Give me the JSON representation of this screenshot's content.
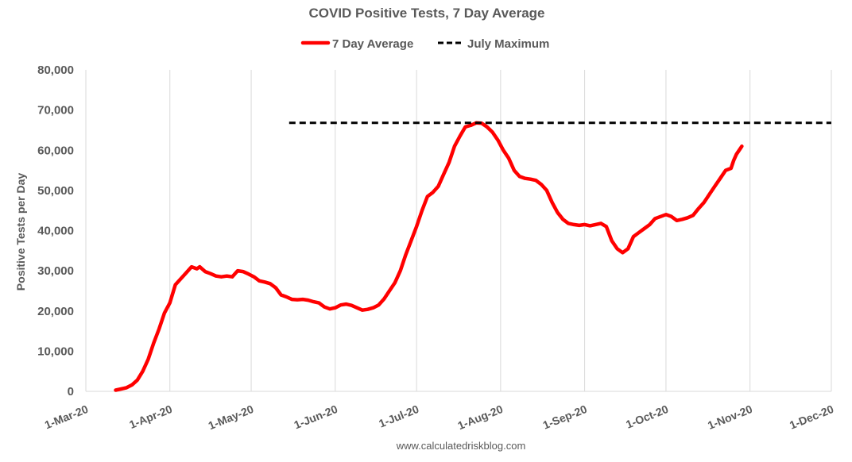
{
  "chart_data": {
    "type": "line",
    "title": "COVID Positive Tests, 7 Day Average",
    "xlabel": "",
    "ylabel": "Positive Tests per Day",
    "ylim": [
      0,
      80000
    ],
    "yticks": [
      0,
      10000,
      20000,
      30000,
      40000,
      50000,
      60000,
      70000,
      80000
    ],
    "ytick_labels": [
      "0",
      "10,000",
      "20,000",
      "30,000",
      "40,000",
      "50,000",
      "60,000",
      "70,000",
      "80,000"
    ],
    "xlim": [
      "2020-03-01",
      "2020-12-01"
    ],
    "xticks": [
      "2020-03-01",
      "2020-04-01",
      "2020-05-01",
      "2020-06-01",
      "2020-07-01",
      "2020-08-01",
      "2020-09-01",
      "2020-10-01",
      "2020-11-01",
      "2020-12-01"
    ],
    "xtick_labels": [
      "1-Mar-20",
      "1-Apr-20",
      "1-May-20",
      "1-Jun-20",
      "1-Jul-20",
      "1-Aug-20",
      "1-Sep-20",
      "1-Oct-20",
      "1-Nov-20",
      "1-Dec-20"
    ],
    "grid": "vertical",
    "legend_placement": "top-center",
    "series": [
      {
        "name": "7 Day Average",
        "color": "#ff0000",
        "style": "solid",
        "points": [
          [
            "2020-03-12",
            300
          ],
          [
            "2020-03-14",
            600
          ],
          [
            "2020-03-16",
            900
          ],
          [
            "2020-03-18",
            1600
          ],
          [
            "2020-03-20",
            2800
          ],
          [
            "2020-03-22",
            5000
          ],
          [
            "2020-03-24",
            8000
          ],
          [
            "2020-03-26",
            12000
          ],
          [
            "2020-03-28",
            15500
          ],
          [
            "2020-03-30",
            19500
          ],
          [
            "2020-04-01",
            22000
          ],
          [
            "2020-04-03",
            26500
          ],
          [
            "2020-04-05",
            28000
          ],
          [
            "2020-04-07",
            29500
          ],
          [
            "2020-04-09",
            31000
          ],
          [
            "2020-04-11",
            30500
          ],
          [
            "2020-04-12",
            31000
          ],
          [
            "2020-04-14",
            29800
          ],
          [
            "2020-04-16",
            29300
          ],
          [
            "2020-04-18",
            28700
          ],
          [
            "2020-04-20",
            28500
          ],
          [
            "2020-04-22",
            28700
          ],
          [
            "2020-04-24",
            28500
          ],
          [
            "2020-04-26",
            30000
          ],
          [
            "2020-04-28",
            29800
          ],
          [
            "2020-04-30",
            29200
          ],
          [
            "2020-05-02",
            28500
          ],
          [
            "2020-05-04",
            27500
          ],
          [
            "2020-05-06",
            27200
          ],
          [
            "2020-05-08",
            26800
          ],
          [
            "2020-05-10",
            25800
          ],
          [
            "2020-05-12",
            24000
          ],
          [
            "2020-05-14",
            23500
          ],
          [
            "2020-05-16",
            22900
          ],
          [
            "2020-05-18",
            22800
          ],
          [
            "2020-05-20",
            22900
          ],
          [
            "2020-05-22",
            22700
          ],
          [
            "2020-05-24",
            22300
          ],
          [
            "2020-05-26",
            22000
          ],
          [
            "2020-05-28",
            21000
          ],
          [
            "2020-05-30",
            20500
          ],
          [
            "2020-06-01",
            20800
          ],
          [
            "2020-06-03",
            21500
          ],
          [
            "2020-06-05",
            21700
          ],
          [
            "2020-06-07",
            21400
          ],
          [
            "2020-06-09",
            20800
          ],
          [
            "2020-06-11",
            20200
          ],
          [
            "2020-06-13",
            20400
          ],
          [
            "2020-06-15",
            20800
          ],
          [
            "2020-06-17",
            21500
          ],
          [
            "2020-06-19",
            23000
          ],
          [
            "2020-06-21",
            25000
          ],
          [
            "2020-06-23",
            27000
          ],
          [
            "2020-06-25",
            30000
          ],
          [
            "2020-06-27",
            34000
          ],
          [
            "2020-06-29",
            37500
          ],
          [
            "2020-07-01",
            41000
          ],
          [
            "2020-07-03",
            45000
          ],
          [
            "2020-07-05",
            48500
          ],
          [
            "2020-07-07",
            49500
          ],
          [
            "2020-07-09",
            51000
          ],
          [
            "2020-07-11",
            54000
          ],
          [
            "2020-07-13",
            57000
          ],
          [
            "2020-07-15",
            61000
          ],
          [
            "2020-07-17",
            63500
          ],
          [
            "2020-07-19",
            65800
          ],
          [
            "2020-07-21",
            66200
          ],
          [
            "2020-07-23",
            66800
          ],
          [
            "2020-07-25",
            66700
          ],
          [
            "2020-07-27",
            65800
          ],
          [
            "2020-07-29",
            64500
          ],
          [
            "2020-07-31",
            62500
          ],
          [
            "2020-08-02",
            60000
          ],
          [
            "2020-08-04",
            58000
          ],
          [
            "2020-08-06",
            55000
          ],
          [
            "2020-08-08",
            53500
          ],
          [
            "2020-08-10",
            53000
          ],
          [
            "2020-08-12",
            52800
          ],
          [
            "2020-08-14",
            52500
          ],
          [
            "2020-08-16",
            51500
          ],
          [
            "2020-08-18",
            50000
          ],
          [
            "2020-08-20",
            47000
          ],
          [
            "2020-08-22",
            44500
          ],
          [
            "2020-08-24",
            42800
          ],
          [
            "2020-08-26",
            41800
          ],
          [
            "2020-08-28",
            41500
          ],
          [
            "2020-08-30",
            41300
          ],
          [
            "2020-09-01",
            41500
          ],
          [
            "2020-09-03",
            41200
          ],
          [
            "2020-09-05",
            41500
          ],
          [
            "2020-09-07",
            41800
          ],
          [
            "2020-09-09",
            41000
          ],
          [
            "2020-09-11",
            37500
          ],
          [
            "2020-09-13",
            35500
          ],
          [
            "2020-09-15",
            34500
          ],
          [
            "2020-09-17",
            35500
          ],
          [
            "2020-09-19",
            38500
          ],
          [
            "2020-09-21",
            39500
          ],
          [
            "2020-09-23",
            40500
          ],
          [
            "2020-09-25",
            41500
          ],
          [
            "2020-09-27",
            43000
          ],
          [
            "2020-09-29",
            43500
          ],
          [
            "2020-10-01",
            44000
          ],
          [
            "2020-10-03",
            43500
          ],
          [
            "2020-10-05",
            42500
          ],
          [
            "2020-10-07",
            42800
          ],
          [
            "2020-10-09",
            43200
          ],
          [
            "2020-10-11",
            43800
          ],
          [
            "2020-10-13",
            45500
          ],
          [
            "2020-10-15",
            47000
          ],
          [
            "2020-10-17",
            49000
          ],
          [
            "2020-10-19",
            51000
          ],
          [
            "2020-10-21",
            53000
          ],
          [
            "2020-10-23",
            55000
          ],
          [
            "2020-10-25",
            55500
          ],
          [
            "2020-10-26",
            57500
          ],
          [
            "2020-10-27",
            59000
          ],
          [
            "2020-10-28",
            60000
          ],
          [
            "2020-10-29",
            61000
          ]
        ]
      },
      {
        "name": "July Maximum",
        "color": "#000000",
        "style": "dashed",
        "points": [
          [
            "2020-05-15",
            66800
          ],
          [
            "2020-12-01",
            66800
          ]
        ]
      }
    ],
    "source": "www.calculatedriskblog.com"
  }
}
